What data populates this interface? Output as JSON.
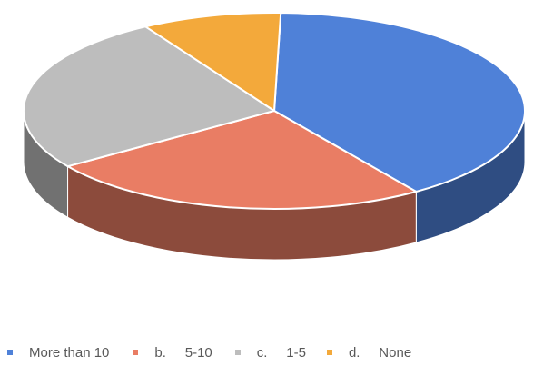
{
  "chart_data": {
    "type": "pie",
    "style": "3d",
    "slices": [
      {
        "label": "More than 10",
        "value": 40,
        "color": "#4F81D8"
      },
      {
        "label": "b.     5-10",
        "value": 25,
        "color": "#E97D64"
      },
      {
        "label": "c.     1-5",
        "value": 26,
        "color": "#BDBDBD"
      },
      {
        "label": "d.     None",
        "value": 9,
        "color": "#F3A93B"
      }
    ],
    "legend_position": "bottom"
  }
}
